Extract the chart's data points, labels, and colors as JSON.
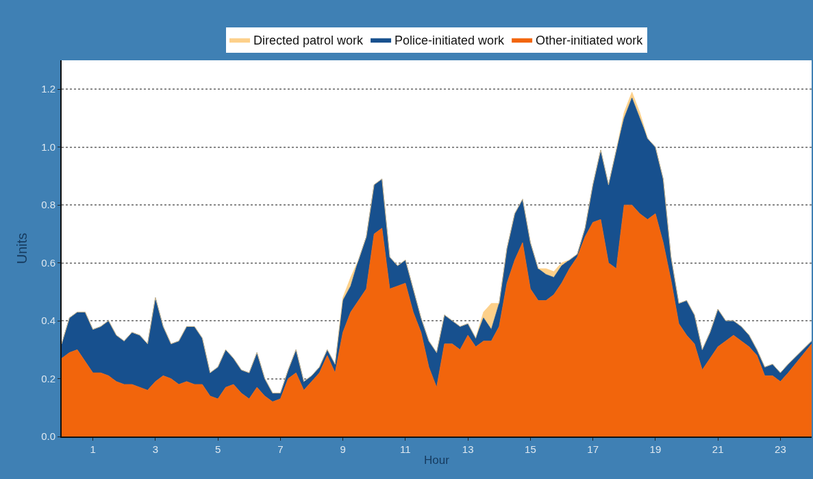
{
  "chart_data": {
    "type": "area",
    "stacked": true,
    "xlabel": "Hour",
    "ylabel": "Units",
    "legend": "top",
    "grid": "y",
    "line_style": "solid",
    "x": [
      0,
      0.25,
      0.5,
      0.75,
      1,
      1.25,
      1.5,
      1.75,
      2,
      2.25,
      2.5,
      2.75,
      3,
      3.25,
      3.5,
      3.75,
      4,
      4.25,
      4.5,
      4.75,
      5,
      5.25,
      5.5,
      5.75,
      6,
      6.25,
      6.5,
      6.75,
      7,
      7.25,
      7.5,
      7.75,
      8,
      8.25,
      8.5,
      8.75,
      9,
      9.25,
      9.5,
      9.75,
      10,
      10.25,
      10.5,
      10.75,
      11,
      11.25,
      11.5,
      11.75,
      12,
      12.25,
      12.5,
      12.75,
      13,
      13.25,
      13.5,
      13.75,
      14,
      14.25,
      14.5,
      14.75,
      15,
      15.25,
      15.5,
      15.75,
      16,
      16.25,
      16.5,
      16.75,
      17,
      17.25,
      17.5,
      17.75,
      18,
      18.25,
      18.5,
      18.75,
      19,
      19.25,
      19.5,
      19.75,
      20,
      20.25,
      20.5,
      20.75,
      21,
      21.25,
      21.5,
      21.75,
      22,
      22.25,
      22.5,
      22.75,
      23,
      23.25,
      24
    ],
    "series": [
      {
        "name": "Other-initiated work",
        "color": "#f2650c",
        "values": [
          0.27,
          0.29,
          0.3,
          0.26,
          0.22,
          0.22,
          0.21,
          0.19,
          0.18,
          0.18,
          0.17,
          0.16,
          0.19,
          0.21,
          0.2,
          0.18,
          0.19,
          0.18,
          0.18,
          0.14,
          0.13,
          0.17,
          0.18,
          0.15,
          0.13,
          0.17,
          0.14,
          0.12,
          0.13,
          0.2,
          0.22,
          0.16,
          0.19,
          0.22,
          0.28,
          0.22,
          0.36,
          0.43,
          0.47,
          0.51,
          0.7,
          0.72,
          0.51,
          0.52,
          0.53,
          0.43,
          0.36,
          0.24,
          0.17,
          0.32,
          0.32,
          0.3,
          0.35,
          0.31,
          0.33,
          0.33,
          0.38,
          0.53,
          0.61,
          0.67,
          0.51,
          0.47,
          0.47,
          0.49,
          0.53,
          0.58,
          0.62,
          0.69,
          0.74,
          0.75,
          0.6,
          0.58,
          0.8,
          0.8,
          0.77,
          0.75,
          0.77,
          0.67,
          0.54,
          0.39,
          0.35,
          0.32,
          0.23,
          0.27,
          0.31,
          0.33,
          0.35,
          0.33,
          0.31,
          0.28,
          0.21,
          0.21,
          0.19,
          0.22,
          0.32
        ]
      },
      {
        "name": "Police-initiated work",
        "color": "#17508e",
        "values": [
          0.05,
          0.12,
          0.13,
          0.17,
          0.15,
          0.16,
          0.19,
          0.16,
          0.15,
          0.18,
          0.18,
          0.16,
          0.29,
          0.17,
          0.12,
          0.15,
          0.19,
          0.2,
          0.16,
          0.08,
          0.11,
          0.13,
          0.09,
          0.08,
          0.09,
          0.12,
          0.06,
          0.03,
          0.02,
          0.03,
          0.08,
          0.03,
          0.02,
          0.02,
          0.02,
          0.03,
          0.11,
          0.09,
          0.14,
          0.18,
          0.17,
          0.17,
          0.11,
          0.07,
          0.08,
          0.08,
          0.05,
          0.09,
          0.12,
          0.1,
          0.08,
          0.08,
          0.04,
          0.03,
          0.08,
          0.04,
          0.08,
          0.12,
          0.16,
          0.15,
          0.16,
          0.11,
          0.09,
          0.06,
          0.06,
          0.03,
          0.01,
          0.03,
          0.13,
          0.24,
          0.27,
          0.41,
          0.3,
          0.37,
          0.33,
          0.28,
          0.23,
          0.22,
          0.08,
          0.07,
          0.12,
          0.1,
          0.07,
          0.09,
          0.13,
          0.07,
          0.05,
          0.05,
          0.04,
          0.02,
          0.03,
          0.04,
          0.03,
          0.03,
          0.01
        ]
      },
      {
        "name": "Directed patrol work",
        "color": "#fdd08a",
        "values": [
          0,
          0,
          0,
          0,
          0,
          0,
          0,
          0,
          0,
          0,
          0,
          0,
          0,
          0,
          0,
          0,
          0,
          0,
          0,
          0,
          0,
          0,
          0,
          0,
          0,
          0,
          0,
          0,
          0,
          0,
          0,
          0,
          0,
          0,
          0,
          0,
          0.01,
          0.03,
          0,
          0,
          0,
          0,
          0,
          0,
          0,
          0,
          0,
          0,
          0,
          0,
          0,
          0,
          0,
          0,
          0.02,
          0.09,
          0,
          0,
          0,
          0,
          0,
          0,
          0.02,
          0.02,
          0.01,
          0,
          0,
          0,
          0,
          0,
          0,
          0,
          0.02,
          0.02,
          0.02,
          0,
          0,
          0,
          0,
          0,
          0,
          0,
          0,
          0,
          0,
          0,
          0,
          0,
          0,
          0,
          0,
          0,
          0,
          0,
          0
        ]
      }
    ],
    "xlim": [
      0,
      24
    ],
    "xticks": [
      1,
      3,
      5,
      7,
      9,
      11,
      13,
      15,
      17,
      19,
      21,
      23
    ],
    "ylim": [
      0,
      1.3
    ],
    "yticks": [
      {
        "value": 0,
        "label": "0.0"
      },
      {
        "value": 0.2,
        "label": "0.2"
      },
      {
        "value": 0.4,
        "label": "0.4"
      },
      {
        "value": 0.6,
        "label": "0.6"
      },
      {
        "value": 0.8,
        "label": "0.8"
      },
      {
        "value": 1.0,
        "label": "1.0"
      },
      {
        "value": 1.2,
        "label": "1.2"
      }
    ]
  }
}
